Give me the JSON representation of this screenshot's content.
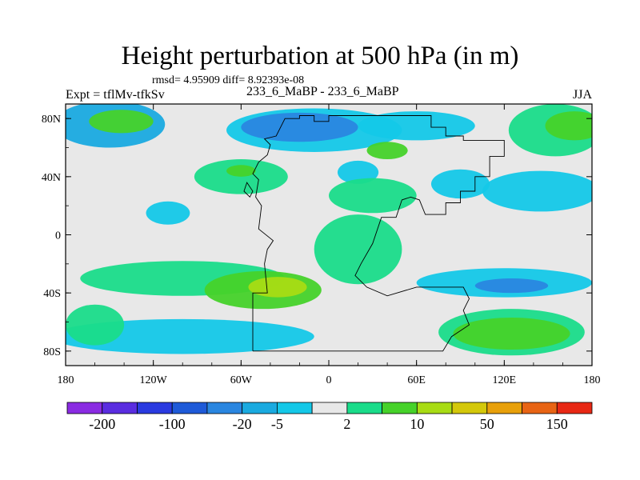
{
  "title": "Height perturbation at 500 hPa (in m)",
  "stats": "rmsd= 4.95909  diff= 8.92393e-08",
  "left_label": "Expt = tflMv-tfkSv",
  "center_label": "233_6_MaBP - 233_6_MaBP",
  "right_label": "JJA",
  "chart_data": {
    "type": "heatmap",
    "title": "Height perturbation at 500 hPa (in m)",
    "xlabel": "",
    "ylabel": "",
    "xlim": [
      -180,
      180
    ],
    "ylim": [
      -90,
      90
    ],
    "x_ticks": [
      {
        "value": -180,
        "label": "180"
      },
      {
        "value": -120,
        "label": "120W"
      },
      {
        "value": -60,
        "label": "60W"
      },
      {
        "value": 0,
        "label": "0"
      },
      {
        "value": 60,
        "label": "60E"
      },
      {
        "value": 120,
        "label": "120E"
      },
      {
        "value": 180,
        "label": "180"
      }
    ],
    "y_ticks": [
      {
        "value": 80,
        "label": "80N"
      },
      {
        "value": 40,
        "label": "40N"
      },
      {
        "value": 0,
        "label": "0"
      },
      {
        "value": -40,
        "label": "40S"
      },
      {
        "value": -80,
        "label": "80S"
      }
    ],
    "colorbar": {
      "colors": [
        "#8a2be2",
        "#5a2de0",
        "#2a3ae0",
        "#1e5ad8",
        "#2a86e0",
        "#1aaae0",
        "#14c8e8",
        "#e8e8e8",
        "#1adc8a",
        "#46d22a",
        "#a8dc14",
        "#d4c80a",
        "#e8a00a",
        "#e86414",
        "#e82814"
      ],
      "labels": [
        {
          "value": -200,
          "label": "-200"
        },
        {
          "value": -100,
          "label": "-100"
        },
        {
          "value": -20,
          "label": "-20"
        },
        {
          "value": -5,
          "label": "-5"
        },
        {
          "value": 2,
          "label": "2"
        },
        {
          "value": 10,
          "label": "10"
        },
        {
          "value": 50,
          "label": "50"
        },
        {
          "value": 150,
          "label": "150"
        }
      ]
    },
    "anomaly_regions": [
      {
        "lon": -150,
        "lat": 76,
        "rlon": 38,
        "rlat": 16,
        "level": 5
      },
      {
        "lon": -142,
        "lat": 78,
        "rlon": 22,
        "rlat": 8,
        "level": 9
      },
      {
        "lon": -10,
        "lat": 72,
        "rlon": 60,
        "rlat": 15,
        "level": 6
      },
      {
        "lon": -20,
        "lat": 74,
        "rlon": 40,
        "rlat": 10,
        "level": 4
      },
      {
        "lon": 60,
        "lat": 75,
        "rlon": 40,
        "rlat": 10,
        "level": 6
      },
      {
        "lon": 40,
        "lat": 58,
        "rlon": 14,
        "rlat": 6,
        "level": 9
      },
      {
        "lon": 155,
        "lat": 72,
        "rlon": 32,
        "rlat": 18,
        "level": 8
      },
      {
        "lon": 168,
        "lat": 75,
        "rlon": 20,
        "rlat": 10,
        "level": 9
      },
      {
        "lon": -60,
        "lat": 40,
        "rlon": 32,
        "rlat": 12,
        "level": 8
      },
      {
        "lon": -60,
        "lat": 44,
        "rlon": 10,
        "rlat": 4,
        "level": 9
      },
      {
        "lon": 20,
        "lat": 43,
        "rlon": 14,
        "rlat": 8,
        "level": 6
      },
      {
        "lon": 30,
        "lat": 27,
        "rlon": 30,
        "rlat": 12,
        "level": 8
      },
      {
        "lon": 145,
        "lat": 30,
        "rlon": 40,
        "rlat": 14,
        "level": 6
      },
      {
        "lon": 90,
        "lat": 35,
        "rlon": 20,
        "rlat": 10,
        "level": 6
      },
      {
        "lon": -110,
        "lat": 15,
        "rlon": 15,
        "rlat": 8,
        "level": 6
      },
      {
        "lon": 20,
        "lat": -10,
        "rlon": 30,
        "rlat": 24,
        "level": 8
      },
      {
        "lon": -100,
        "lat": -30,
        "rlon": 70,
        "rlat": 12,
        "level": 8
      },
      {
        "lon": -45,
        "lat": -38,
        "rlon": 40,
        "rlat": 13,
        "level": 9
      },
      {
        "lon": -35,
        "lat": -36,
        "rlon": 20,
        "rlat": 7,
        "level": 10
      },
      {
        "lon": 120,
        "lat": -33,
        "rlon": 60,
        "rlat": 10,
        "level": 6
      },
      {
        "lon": 125,
        "lat": -35,
        "rlon": 25,
        "rlat": 5,
        "level": 4
      },
      {
        "lon": -100,
        "lat": -70,
        "rlon": 90,
        "rlat": 12,
        "level": 6
      },
      {
        "lon": -160,
        "lat": -62,
        "rlon": 20,
        "rlat": 14,
        "level": 8
      },
      {
        "lon": 125,
        "lat": -67,
        "rlon": 50,
        "rlat": 16,
        "level": 8
      },
      {
        "lon": 125,
        "lat": -68,
        "rlon": 40,
        "rlat": 11,
        "level": 9
      }
    ]
  }
}
